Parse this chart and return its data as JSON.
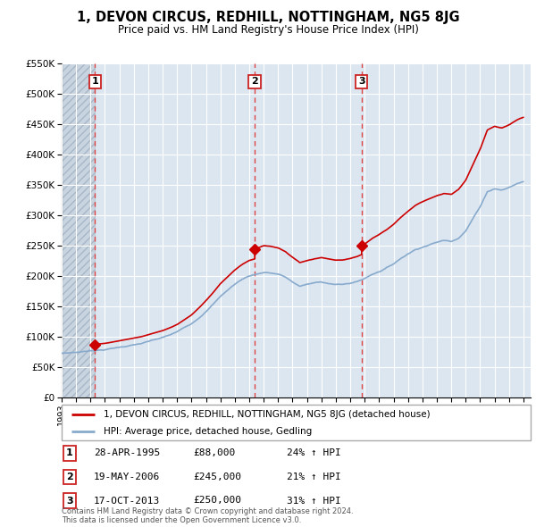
{
  "title": "1, DEVON CIRCUS, REDHILL, NOTTINGHAM, NG5 8JG",
  "subtitle": "Price paid vs. HM Land Registry's House Price Index (HPI)",
  "hpi_label": "HPI: Average price, detached house, Gedling",
  "property_label": "1, DEVON CIRCUS, REDHILL, NOTTINGHAM, NG5 8JG (detached house)",
  "footnote": "Contains HM Land Registry data © Crown copyright and database right 2024.\nThis data is licensed under the Open Government Licence v3.0.",
  "transactions": [
    {
      "num": 1,
      "date": "28-APR-1995",
      "price": "£88,000",
      "change": "24% ↑ HPI",
      "year": 1995.32
    },
    {
      "num": 2,
      "date": "19-MAY-2006",
      "price": "£245,000",
      "change": "21% ↑ HPI",
      "year": 2006.38
    },
    {
      "num": 3,
      "date": "17-OCT-2013",
      "price": "£250,000",
      "change": "31% ↑ HPI",
      "year": 2013.79
    }
  ],
  "sale_prices": [
    88000,
    245000,
    250000
  ],
  "sale_years": [
    1995.32,
    2006.38,
    2013.79
  ],
  "ylim": [
    0,
    550000
  ],
  "yticks": [
    0,
    50000,
    100000,
    150000,
    200000,
    250000,
    300000,
    350000,
    400000,
    450000,
    500000,
    550000
  ],
  "xlim_start": 1993.0,
  "xlim_end": 2025.5,
  "hatch_end_year": 1995.32,
  "bg_color": "#dce6f1",
  "hatch_color": "#c8d4e0",
  "grid_color": "#ffffff",
  "red_line_color": "#cc0000",
  "blue_line_color": "#88aacc",
  "dashed_vline_color": "#dd4444",
  "marker_fill": "#cc0000",
  "box_edge_color": "#cc2222"
}
